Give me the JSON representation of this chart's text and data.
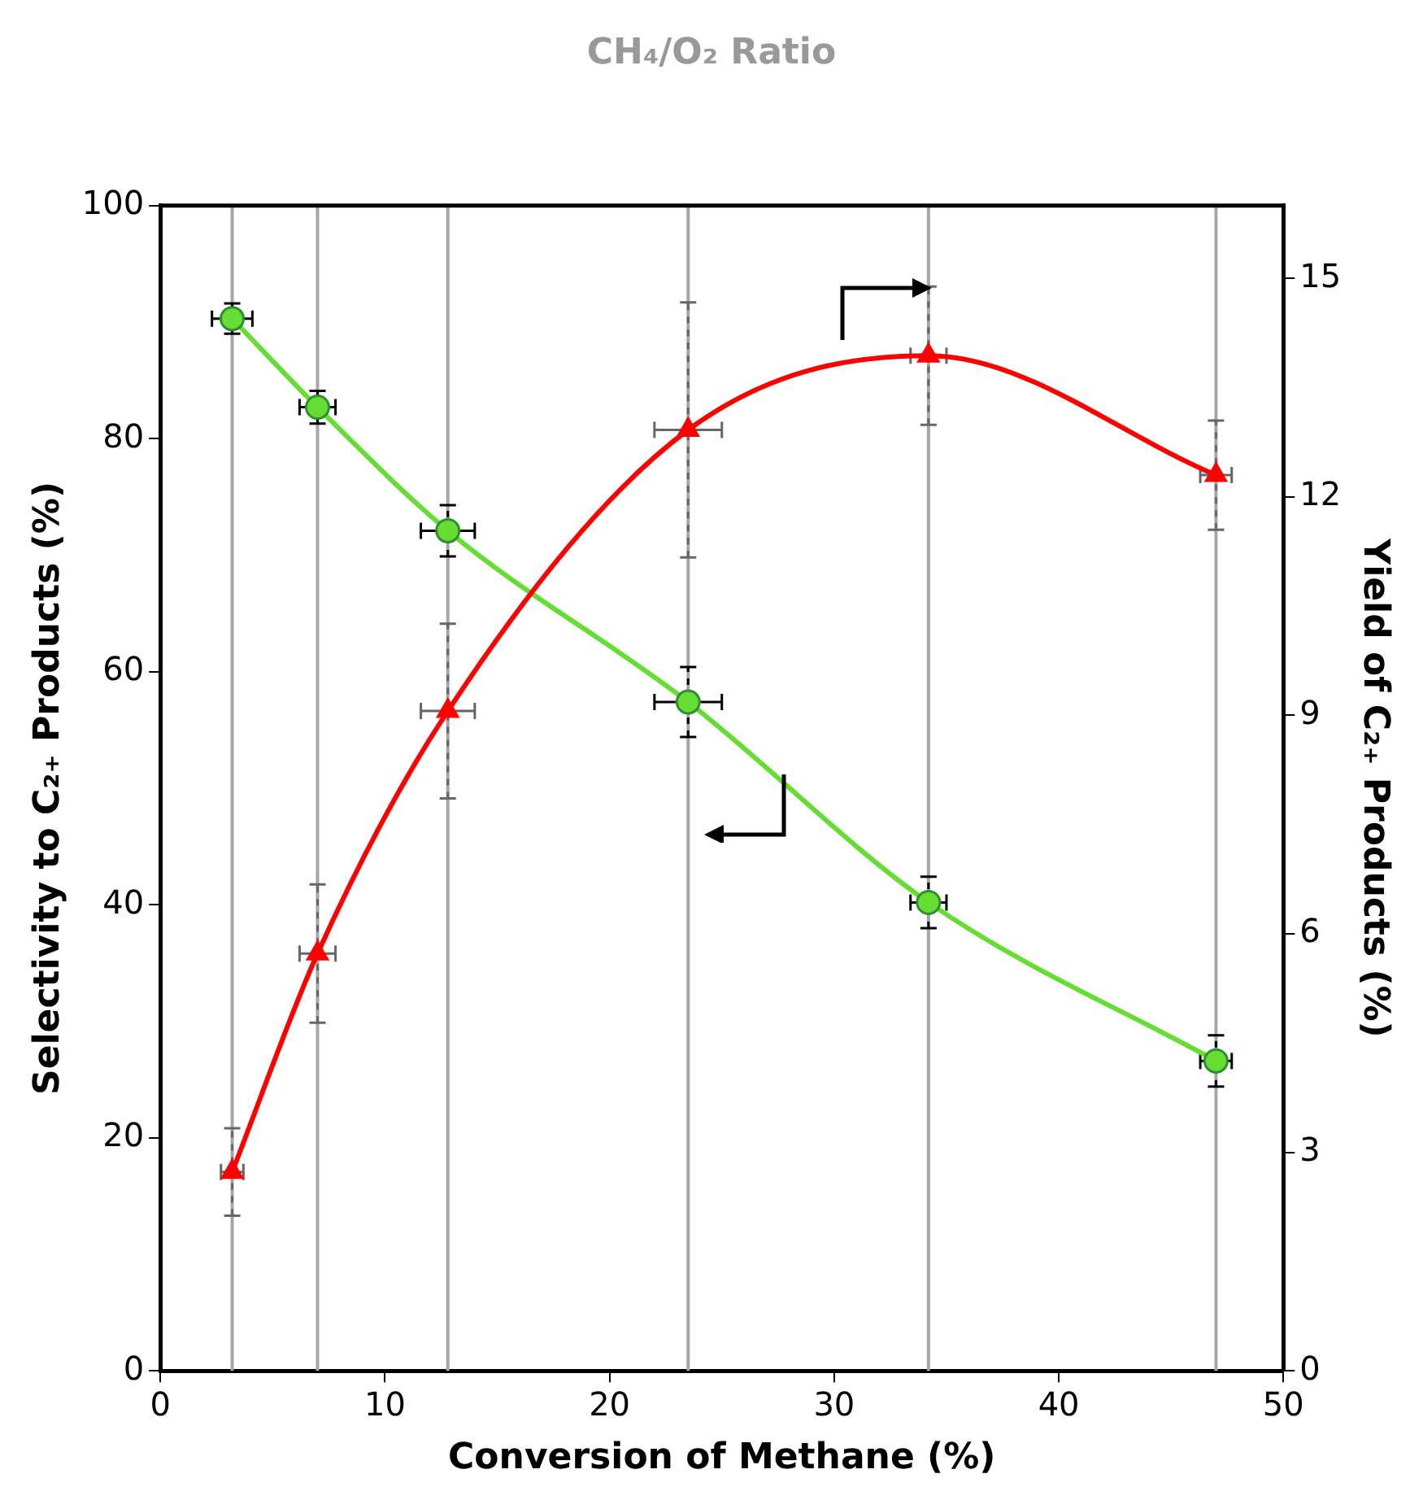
{
  "chart_data": {
    "type": "line",
    "title": "CH₄/O₂ Ratio",
    "xlabel": "Conversion of Methane (%)",
    "ylabel": "Selectivity to C₂₊ Products (%)",
    "y2label": "Yield of C₂₊ Products (%)",
    "xlim": [
      0,
      50
    ],
    "xticks": [
      0,
      10,
      20,
      30,
      40,
      50
    ],
    "ylim": [
      0,
      100
    ],
    "yticks": [
      0,
      20,
      40,
      60,
      80,
      100
    ],
    "y2lim": [
      0,
      16
    ],
    "y2ticks": [
      0,
      3,
      6,
      9,
      12,
      15
    ],
    "grid": false,
    "legend": false,
    "ref_lines": [
      {
        "axis": "x",
        "value": 3.2,
        "color": "#a6a6a6"
      },
      {
        "axis": "x",
        "value": 7.0,
        "color": "#a6a6a6"
      },
      {
        "axis": "x",
        "value": 12.8,
        "color": "#a6a6a6"
      },
      {
        "axis": "x",
        "value": 23.5,
        "color": "#a6a6a6"
      },
      {
        "axis": "x",
        "value": 34.2,
        "color": "#a6a6a6"
      },
      {
        "axis": "x",
        "value": 47.0,
        "color": "#a6a6a6"
      }
    ],
    "series": [
      {
        "color": "#66dd33",
        "marker": "circle",
        "axis": "y",
        "x": [
          3.2,
          7.0,
          12.8,
          23.5,
          34.2,
          47.0
        ],
        "values": [
          90.3,
          82.7,
          72.1,
          57.4,
          40.2,
          26.6
        ],
        "errors": [
          1.3,
          1.4,
          2.2,
          3,
          2.2,
          2.2
        ],
        "xerrors": [
          0.9,
          0.8,
          1.2,
          1.5,
          0.8,
          0.7
        ]
      },
      {
        "color": "#ff0000",
        "marker": "triangle",
        "axis": "y2",
        "x": [
          3.2,
          7.0,
          12.8,
          23.5,
          34.2,
          47.0
        ],
        "values": [
          2.73,
          5.73,
          9.06,
          12.92,
          13.94,
          12.3
        ],
        "errors": [
          0.6,
          0.95,
          1.2,
          1.75,
          0.95,
          0.75
        ],
        "xerrors": [
          0.5,
          0.8,
          1.2,
          1.5,
          0.8,
          0.7
        ]
      }
    ]
  }
}
